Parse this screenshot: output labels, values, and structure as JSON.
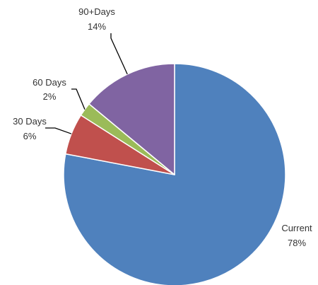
{
  "chart_data": {
    "type": "pie",
    "title": "",
    "start_angle_deg": 0,
    "direction": "clockwise",
    "categories": [
      "Current",
      "30 Days",
      "60 Days",
      "90+Days"
    ],
    "values": [
      78,
      6,
      2,
      14
    ],
    "labels": [
      {
        "category": "Current",
        "percent_text": "78%"
      },
      {
        "category": "30 Days",
        "percent_text": "6%"
      },
      {
        "category": "60 Days",
        "percent_text": "2%"
      },
      {
        "category": "90+Days",
        "percent_text": "14%"
      }
    ],
    "colors": [
      "#4f81bd",
      "#c0504d",
      "#9bbb59",
      "#8064a2"
    ],
    "slice_border_color": "#ffffff",
    "legend": "none"
  }
}
